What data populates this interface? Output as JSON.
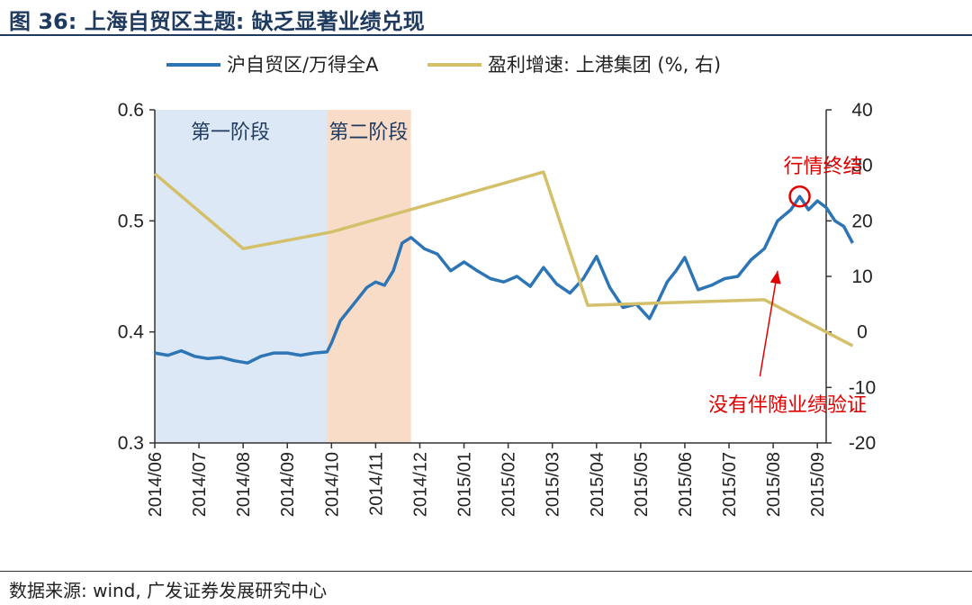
{
  "figure_title": "图 36: 上海自贸区主题: 缺乏显著业绩兑现",
  "source": "数据来源: wind, 广发证券发展研究中心",
  "chart_data": {
    "type": "line",
    "legend": [
      "沪自贸区/万得全A",
      "盈利增速: 上港集团 (%, 右)"
    ],
    "categories": [
      "2014/06",
      "2014/07",
      "2014/08",
      "2014/09",
      "2014/10",
      "2014/11",
      "2014/12",
      "2015/01",
      "2015/02",
      "2015/03",
      "2015/04",
      "2015/05",
      "2015/06",
      "2015/07",
      "2015/08",
      "2015/09"
    ],
    "y_left": {
      "range": [
        0.3,
        0.6
      ],
      "ticks": [
        "0.3",
        "0.4",
        "0.5",
        "0.6"
      ]
    },
    "y_right": {
      "range": [
        -20,
        40
      ],
      "ticks": [
        "-20",
        "-10",
        "0",
        "10",
        "20",
        "30",
        "40"
      ]
    },
    "colors": {
      "ratio": "#2e75b6",
      "growth": "#d4c06a",
      "phase1": "#dce8f5",
      "phase2": "#f9dcc8",
      "annotation": "#e00000"
    },
    "phases": [
      {
        "label": "第一阶段",
        "start": 0.0,
        "end": 3.9
      },
      {
        "label": "第二阶段",
        "start": 3.9,
        "end": 5.8
      }
    ],
    "annotations": [
      {
        "label": "行情终结",
        "x": 14.6,
        "y": 0.522,
        "axis": "left",
        "marker": "circle"
      },
      {
        "label": "没有伴随业绩验证",
        "x_text": 13.0,
        "y_text_right": -13,
        "arrow_from": [
          13.7,
          -8
        ],
        "arrow_to": [
          14.1,
          11
        ],
        "axis": "right"
      }
    ],
    "series": [
      {
        "name": "沪自贸区/万得全A",
        "axis": "left",
        "x": [
          0,
          0.3,
          0.6,
          0.9,
          1.2,
          1.5,
          1.8,
          2.1,
          2.4,
          2.7,
          3.0,
          3.3,
          3.6,
          3.9,
          4.0,
          4.2,
          4.5,
          4.8,
          5.0,
          5.2,
          5.4,
          5.6,
          5.8,
          6.1,
          6.4,
          6.7,
          7.0,
          7.3,
          7.6,
          7.9,
          8.2,
          8.5,
          8.8,
          9.1,
          9.4,
          9.7,
          10.0,
          10.3,
          10.6,
          10.9,
          11.2,
          11.4,
          11.6,
          11.8,
          12.0,
          12.3,
          12.6,
          12.9,
          13.2,
          13.5,
          13.8,
          14.1,
          14.4,
          14.6,
          14.8,
          15.0,
          15.2,
          15.4,
          15.6,
          15.8
        ],
        "y": [
          0.381,
          0.379,
          0.383,
          0.378,
          0.376,
          0.377,
          0.374,
          0.372,
          0.378,
          0.381,
          0.381,
          0.379,
          0.381,
          0.382,
          0.39,
          0.41,
          0.425,
          0.44,
          0.445,
          0.442,
          0.455,
          0.48,
          0.485,
          0.475,
          0.47,
          0.455,
          0.463,
          0.455,
          0.448,
          0.445,
          0.45,
          0.441,
          0.458,
          0.443,
          0.435,
          0.448,
          0.468,
          0.44,
          0.422,
          0.425,
          0.412,
          0.428,
          0.445,
          0.455,
          0.467,
          0.438,
          0.442,
          0.448,
          0.45,
          0.465,
          0.475,
          0.5,
          0.51,
          0.522,
          0.51,
          0.518,
          0.512,
          0.5,
          0.495,
          0.48
        ]
      },
      {
        "name": "盈利增速: 上港集团 (%, 右)",
        "axis": "right",
        "x": [
          0,
          2.0,
          4.0,
          8.8,
          9.8,
          13.8,
          15.8
        ],
        "y": [
          28.5,
          15,
          18,
          28.8,
          4.8,
          5.8,
          -2.5
        ]
      }
    ]
  }
}
